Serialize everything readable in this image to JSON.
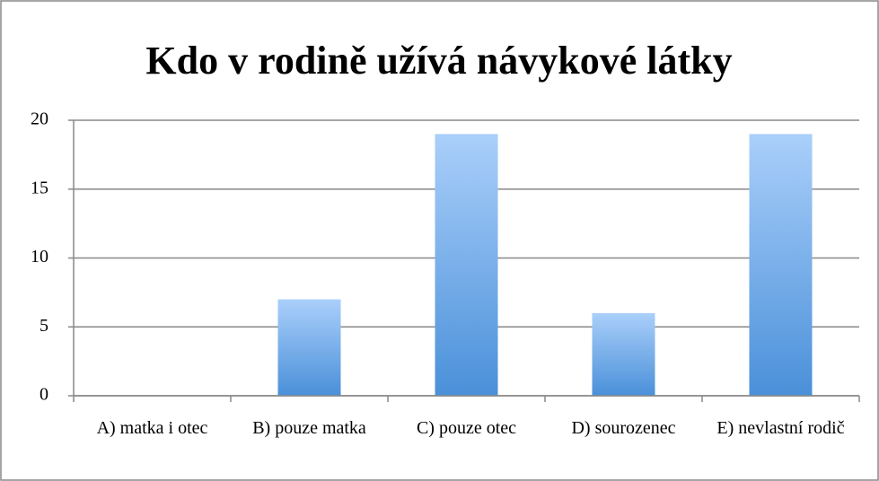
{
  "chart_data": {
    "type": "bar",
    "title": "Kdo v rodině užívá návykové látky",
    "categories": [
      "A) matka i otec",
      "B) pouze matka",
      "C) pouze otec",
      "D) sourozenec",
      "E) nevlastní rodič"
    ],
    "values": [
      0,
      7,
      19,
      6,
      19
    ],
    "color": "#4a90d9",
    "ylim": [
      0,
      20
    ],
    "yticks": [
      0,
      5,
      10,
      15,
      20
    ],
    "grid": true
  }
}
